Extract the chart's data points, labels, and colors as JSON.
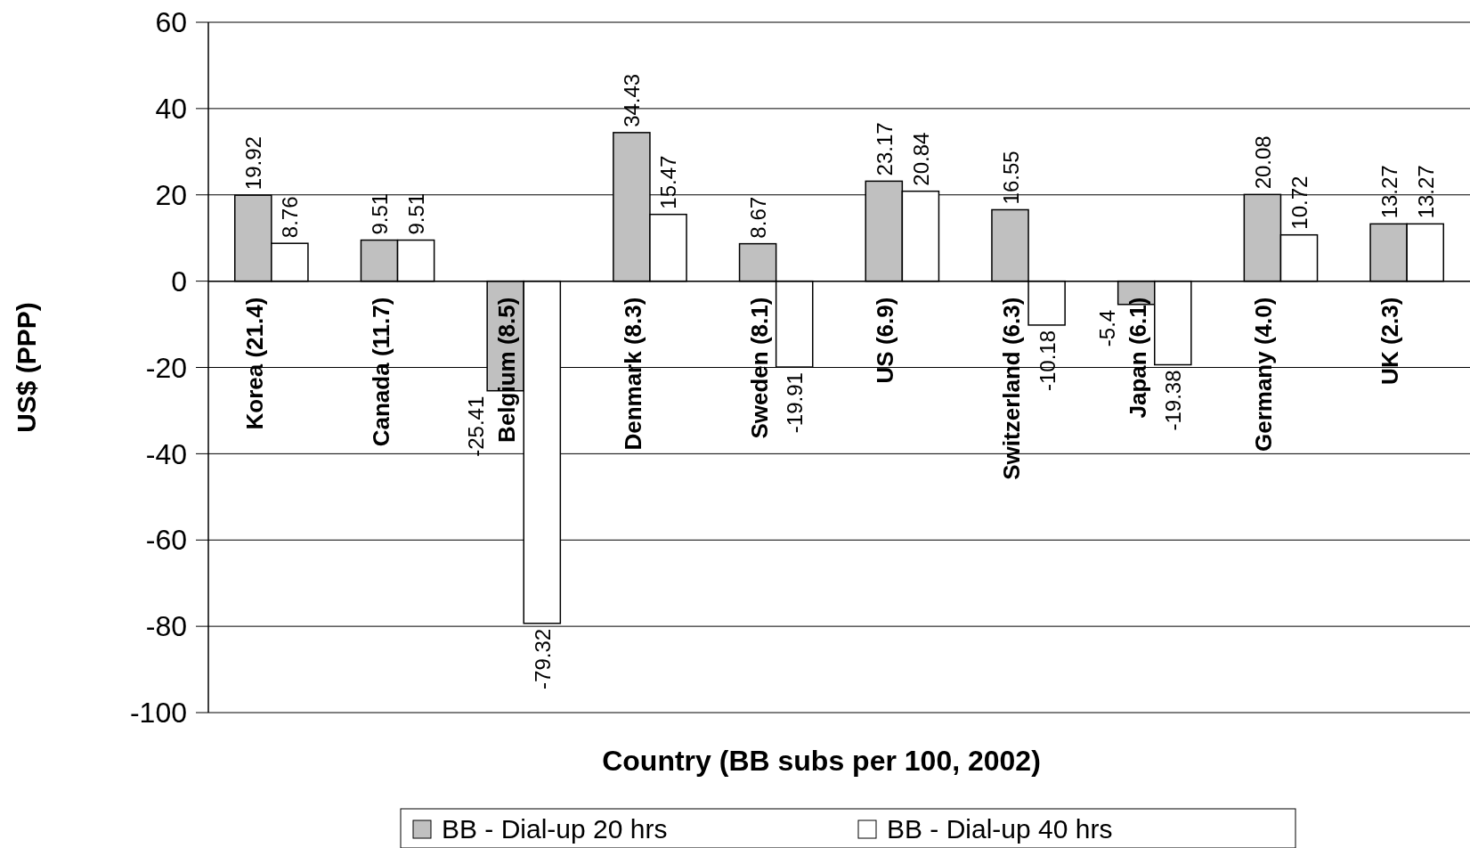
{
  "chart_data": {
    "type": "bar",
    "xlabel": "Country (BB subs per 100, 2002)",
    "ylabel": "US$ (PPP)",
    "categories": [
      "Korea (21.4)",
      "Canada (11.7)",
      "Belgium (8.5)",
      "Denmark (8.3)",
      "Sweden (8.1)",
      "US (6.9)",
      "Switzerland (6.3)",
      "Japan (6.1)",
      "Germany (4.0)",
      "UK (2.3)"
    ],
    "series": [
      {
        "name": "BB - Dial-up 20 hrs",
        "color": "#c0c0c0",
        "values": [
          19.92,
          9.51,
          -25.41,
          34.43,
          8.67,
          23.17,
          16.55,
          -5.4,
          20.08,
          13.27
        ]
      },
      {
        "name": "BB - Dial-up 40 hrs",
        "color": "#ffffff",
        "values": [
          8.76,
          9.51,
          -79.32,
          15.47,
          -19.91,
          20.84,
          -10.18,
          -19.38,
          10.72,
          13.27
        ]
      }
    ],
    "ylim": [
      -100,
      60
    ],
    "yticks": [
      -100,
      -80,
      -60,
      -40,
      -20,
      0,
      20,
      40,
      60
    ],
    "grid": "y",
    "legend": "bottom",
    "data_labels": true
  }
}
